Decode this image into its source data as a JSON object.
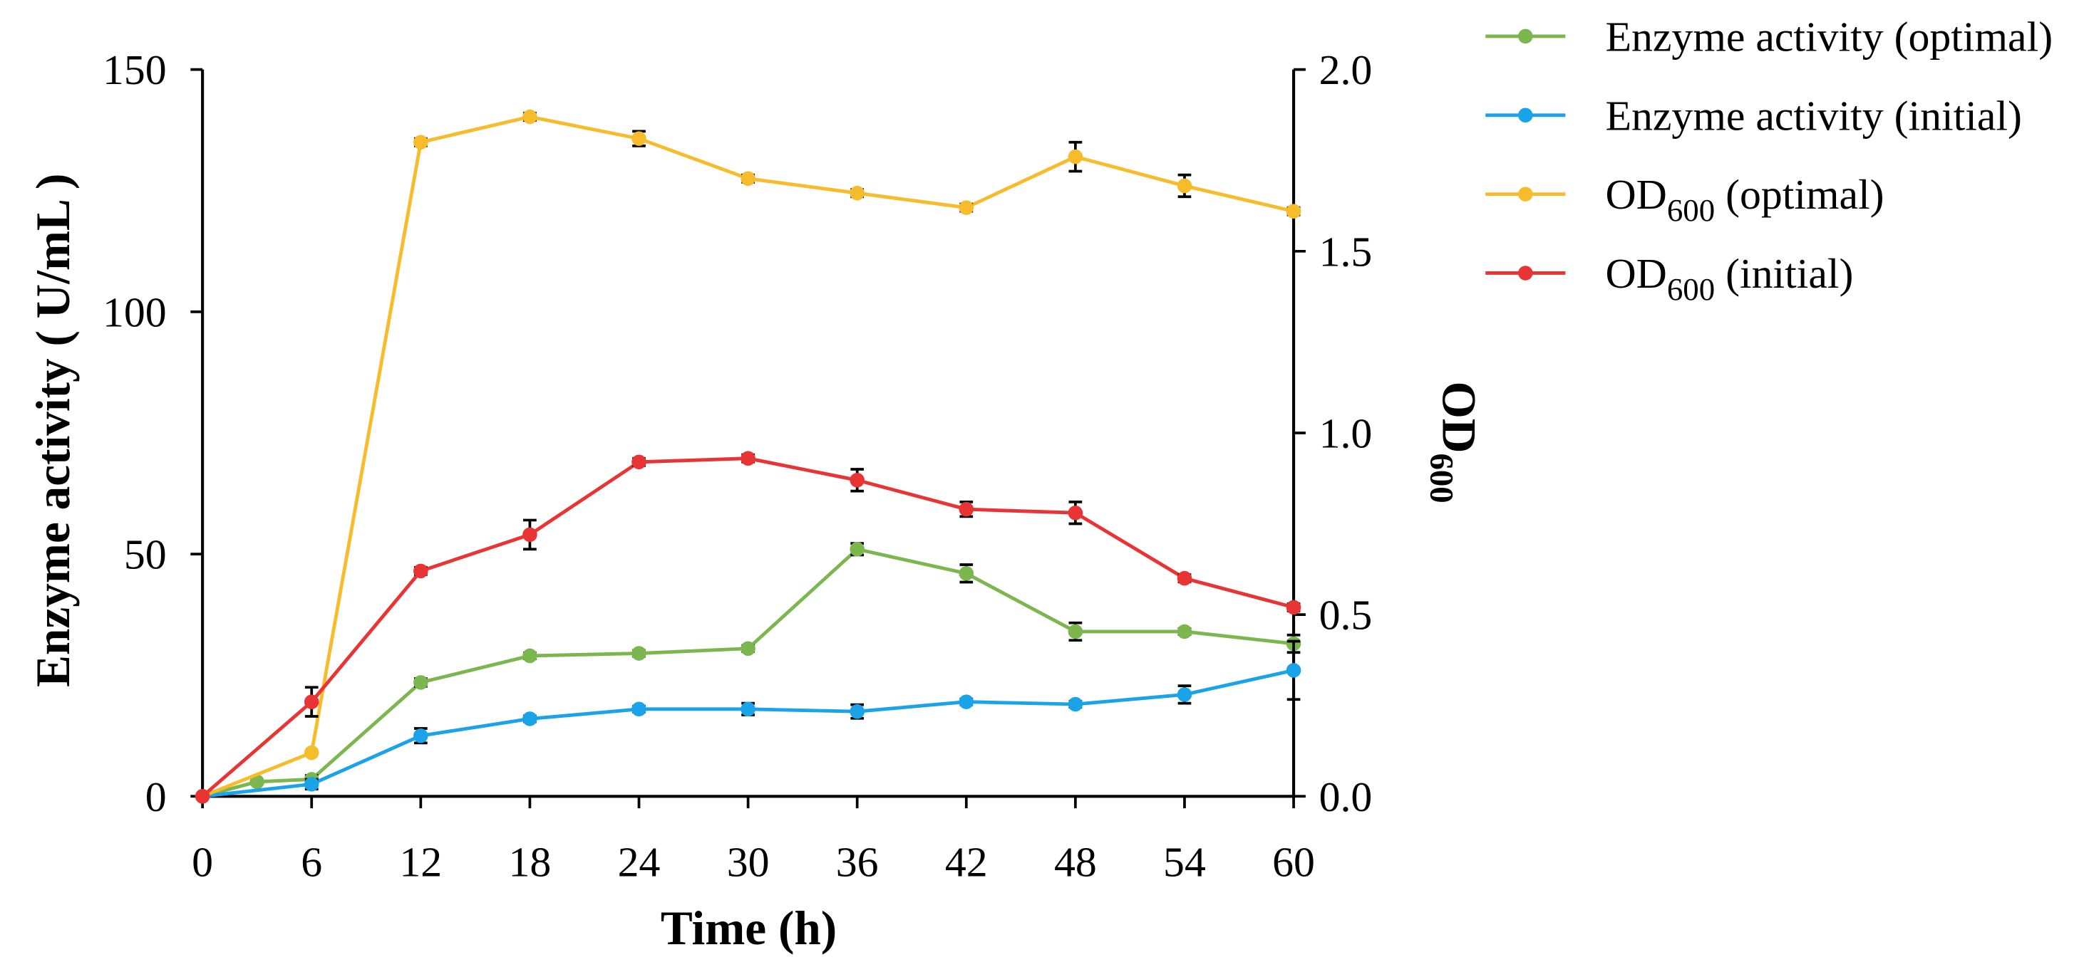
{
  "chart_data": {
    "type": "line",
    "xlabel": "Time (h)",
    "ylabel_left": "Enzyme activity ( U/mL )",
    "ylabel_right": {
      "main": "OD",
      "sub": "600"
    },
    "xlim": [
      0,
      60
    ],
    "x_ticks": [
      0,
      6,
      12,
      18,
      24,
      30,
      36,
      42,
      48,
      54,
      60
    ],
    "x_tick_labels": [
      "0",
      "6",
      "12",
      "18",
      "24",
      "30",
      "36",
      "42",
      "48",
      "54",
      "60"
    ],
    "ylim_left": [
      0,
      150
    ],
    "y_left_ticks": [
      0,
      50,
      100,
      150
    ],
    "y_left_tick_labels": [
      "0",
      "50",
      "100",
      "150"
    ],
    "ylim_right": [
      0,
      2.0
    ],
    "y_right_ticks": [
      0,
      0.5,
      1.0,
      1.5,
      2.0
    ],
    "y_right_tick_labels": [
      "0.0",
      "0.5",
      "1.0",
      "1.5",
      "2.0"
    ],
    "legend_position": "top-right",
    "left_axis_series": [
      {
        "label_main": "Enzyme activity (optimal)",
        "color": "#7cb64e",
        "x": [
          0,
          3,
          6,
          12,
          18,
          24,
          30,
          36,
          42,
          48,
          54,
          60
        ],
        "values": [
          0,
          3.0,
          3.5,
          23.5,
          29.0,
          29.5,
          30.5,
          51.0,
          46.0,
          34.0,
          34.0,
          31.5
        ],
        "errors": [
          0,
          0,
          0.8,
          0.8,
          0.6,
          0.6,
          0.6,
          1.2,
          1.8,
          1.8,
          0.6,
          1.8
        ]
      },
      {
        "label_main": "Enzyme activity (initial)",
        "color": "#1aa3e8",
        "x": [
          0,
          6,
          12,
          18,
          24,
          30,
          36,
          42,
          48,
          54,
          60
        ],
        "values": [
          0,
          2.5,
          12.5,
          16.0,
          18.0,
          18.0,
          17.5,
          19.5,
          19.0,
          21.0,
          26.0
        ],
        "errors": [
          0,
          1.0,
          1.5,
          0.6,
          0.6,
          1.2,
          1.4,
          0.6,
          0.6,
          1.8,
          6.0
        ]
      }
    ],
    "right_axis_series": [
      {
        "label_main": "OD",
        "label_sub": "600",
        "label_rest": " (optimal)",
        "color": "#f6bc2c",
        "x": [
          0,
          6,
          12,
          18,
          24,
          30,
          36,
          42,
          48,
          54,
          60
        ],
        "values": [
          0,
          0.12,
          1.8,
          1.87,
          1.81,
          1.7,
          1.66,
          1.62,
          1.76,
          1.68,
          1.61
        ],
        "errors": [
          0,
          0,
          0.01,
          0.01,
          0.02,
          0.01,
          0.01,
          0.01,
          0.04,
          0.03,
          0.01
        ]
      },
      {
        "label_main": "OD",
        "label_sub": "600",
        "label_rest": " (initial)",
        "color": "#e83434",
        "x": [
          0,
          6,
          12,
          18,
          24,
          30,
          36,
          42,
          48,
          54,
          60
        ],
        "values": [
          0,
          0.26,
          0.62,
          0.72,
          0.92,
          0.93,
          0.87,
          0.79,
          0.78,
          0.6,
          0.52
        ],
        "errors": [
          0,
          0.04,
          0.01,
          0.04,
          0.01,
          0.01,
          0.03,
          0.02,
          0.03,
          0.01,
          0.01
        ]
      }
    ]
  }
}
